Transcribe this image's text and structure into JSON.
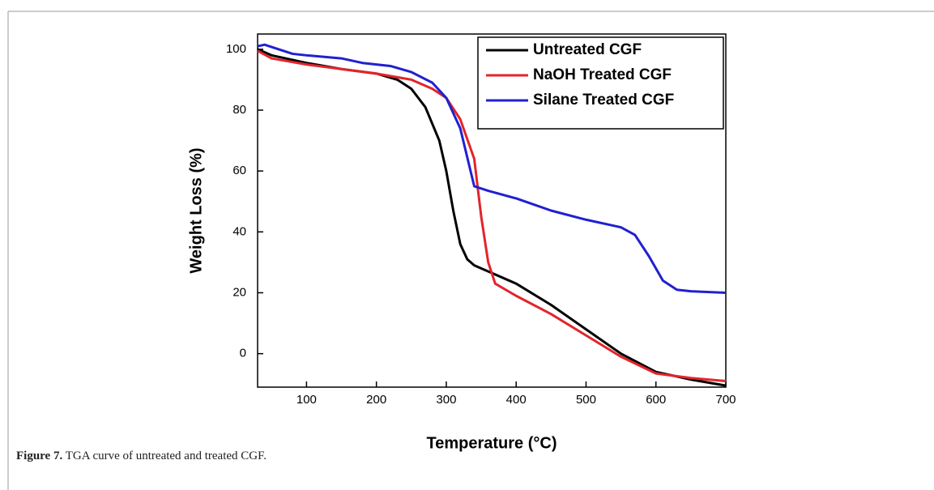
{
  "chart_data": {
    "type": "line",
    "xlabel": "Temperature (°C)",
    "ylabel": "Weight Loss (%)",
    "xlim": [
      30,
      700
    ],
    "xticks": [
      100,
      200,
      300,
      400,
      500,
      600,
      700
    ],
    "ylim": [
      -11,
      105
    ],
    "yticks": [
      0,
      20,
      40,
      60,
      80,
      100
    ],
    "legend": "upper right",
    "series": [
      {
        "name": "Untreated CGF",
        "color": "#000000",
        "x": [
          30,
          50,
          100,
          150,
          200,
          230,
          250,
          270,
          290,
          300,
          310,
          320,
          330,
          340,
          360,
          400,
          450,
          500,
          550,
          600,
          650,
          700
        ],
        "values": [
          100,
          98,
          95.5,
          93.5,
          92,
          90,
          87,
          81,
          70,
          60,
          47,
          36,
          31,
          29,
          27,
          23,
          16,
          8,
          0,
          -6,
          -8.5,
          -10.5
        ]
      },
      {
        "name": "NaOH Treated CGF",
        "color": "#e3242b",
        "x": [
          30,
          50,
          100,
          150,
          200,
          250,
          280,
          300,
          320,
          340,
          350,
          360,
          370,
          400,
          450,
          500,
          550,
          600,
          650,
          700
        ],
        "values": [
          99.5,
          97,
          95,
          93.5,
          92,
          90,
          87,
          84,
          77,
          64,
          45,
          30,
          23,
          19,
          13,
          6,
          -1,
          -6.5,
          -8,
          -9
        ]
      },
      {
        "name": "Silane Treated CGF",
        "color": "#2020d0",
        "x": [
          30,
          40,
          60,
          80,
          100,
          150,
          180,
          220,
          250,
          280,
          300,
          320,
          340,
          360,
          400,
          450,
          500,
          550,
          570,
          590,
          610,
          630,
          650,
          700
        ],
        "values": [
          101,
          101.5,
          100,
          98.5,
          98,
          97,
          95.5,
          94.5,
          92.5,
          89,
          84,
          74,
          55,
          53.5,
          51,
          47,
          44,
          41.5,
          39,
          32,
          24,
          21,
          20.5,
          20
        ]
      }
    ]
  },
  "caption": {
    "label": "Figure 7.",
    "text": "TGA curve of untreated and treated CGF."
  }
}
